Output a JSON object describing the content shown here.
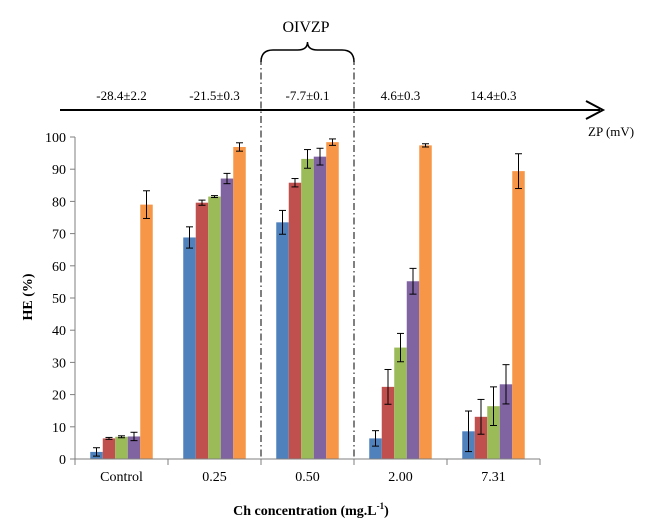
{
  "chart_data": {
    "type": "bar",
    "title": "",
    "xlabel": "Ch concentration (mg.L",
    "xlabel_sup": "-1",
    "xlabel_end": ")",
    "ylabel": "HE (%)",
    "ylim": [
      0,
      100
    ],
    "yticks": [
      "0",
      "10",
      "20",
      "30",
      "40",
      "50",
      "60",
      "70",
      "80",
      "90",
      "100"
    ],
    "grid": false,
    "legend": "none",
    "categories": [
      "Control",
      "0.25",
      "0.50",
      "2.00",
      "7.31"
    ],
    "series": [
      {
        "color": "#4f81bd",
        "values": [
          2.2,
          68.8,
          73.5,
          6.4,
          8.6
        ],
        "errors": [
          1.3,
          3.3,
          3.7,
          2.4,
          6.3
        ]
      },
      {
        "color": "#c0504d",
        "values": [
          6.4,
          79.6,
          85.8,
          22.4,
          13.1
        ],
        "errors": [
          0.3,
          0.8,
          1.3,
          5.4,
          5.4
        ]
      },
      {
        "color": "#9bbb59",
        "values": [
          6.9,
          81.5,
          93.2,
          34.6,
          16.4
        ],
        "errors": [
          0.3,
          0.3,
          2.9,
          4.4,
          6.0
        ]
      },
      {
        "color": "#8064a2",
        "values": [
          7.0,
          87.1,
          93.9,
          55.2,
          23.2
        ],
        "errors": [
          1.3,
          1.6,
          2.6,
          4.0,
          6.1
        ]
      },
      {
        "color": "#f79646",
        "values": [
          79.0,
          96.9,
          98.4,
          97.4,
          89.4
        ],
        "errors": [
          4.3,
          1.3,
          1.0,
          0.5,
          5.4
        ]
      }
    ],
    "zeta_potential": {
      "axis_label": "ZP (mV)",
      "values": [
        "-28.4±2.2",
        "-21.5±0.3",
        "-7.7±0.1",
        "4.6±0.3",
        "14.4±0.3"
      ]
    },
    "annotation": {
      "label": "OIVZP",
      "highlight_category": "0.50"
    }
  }
}
